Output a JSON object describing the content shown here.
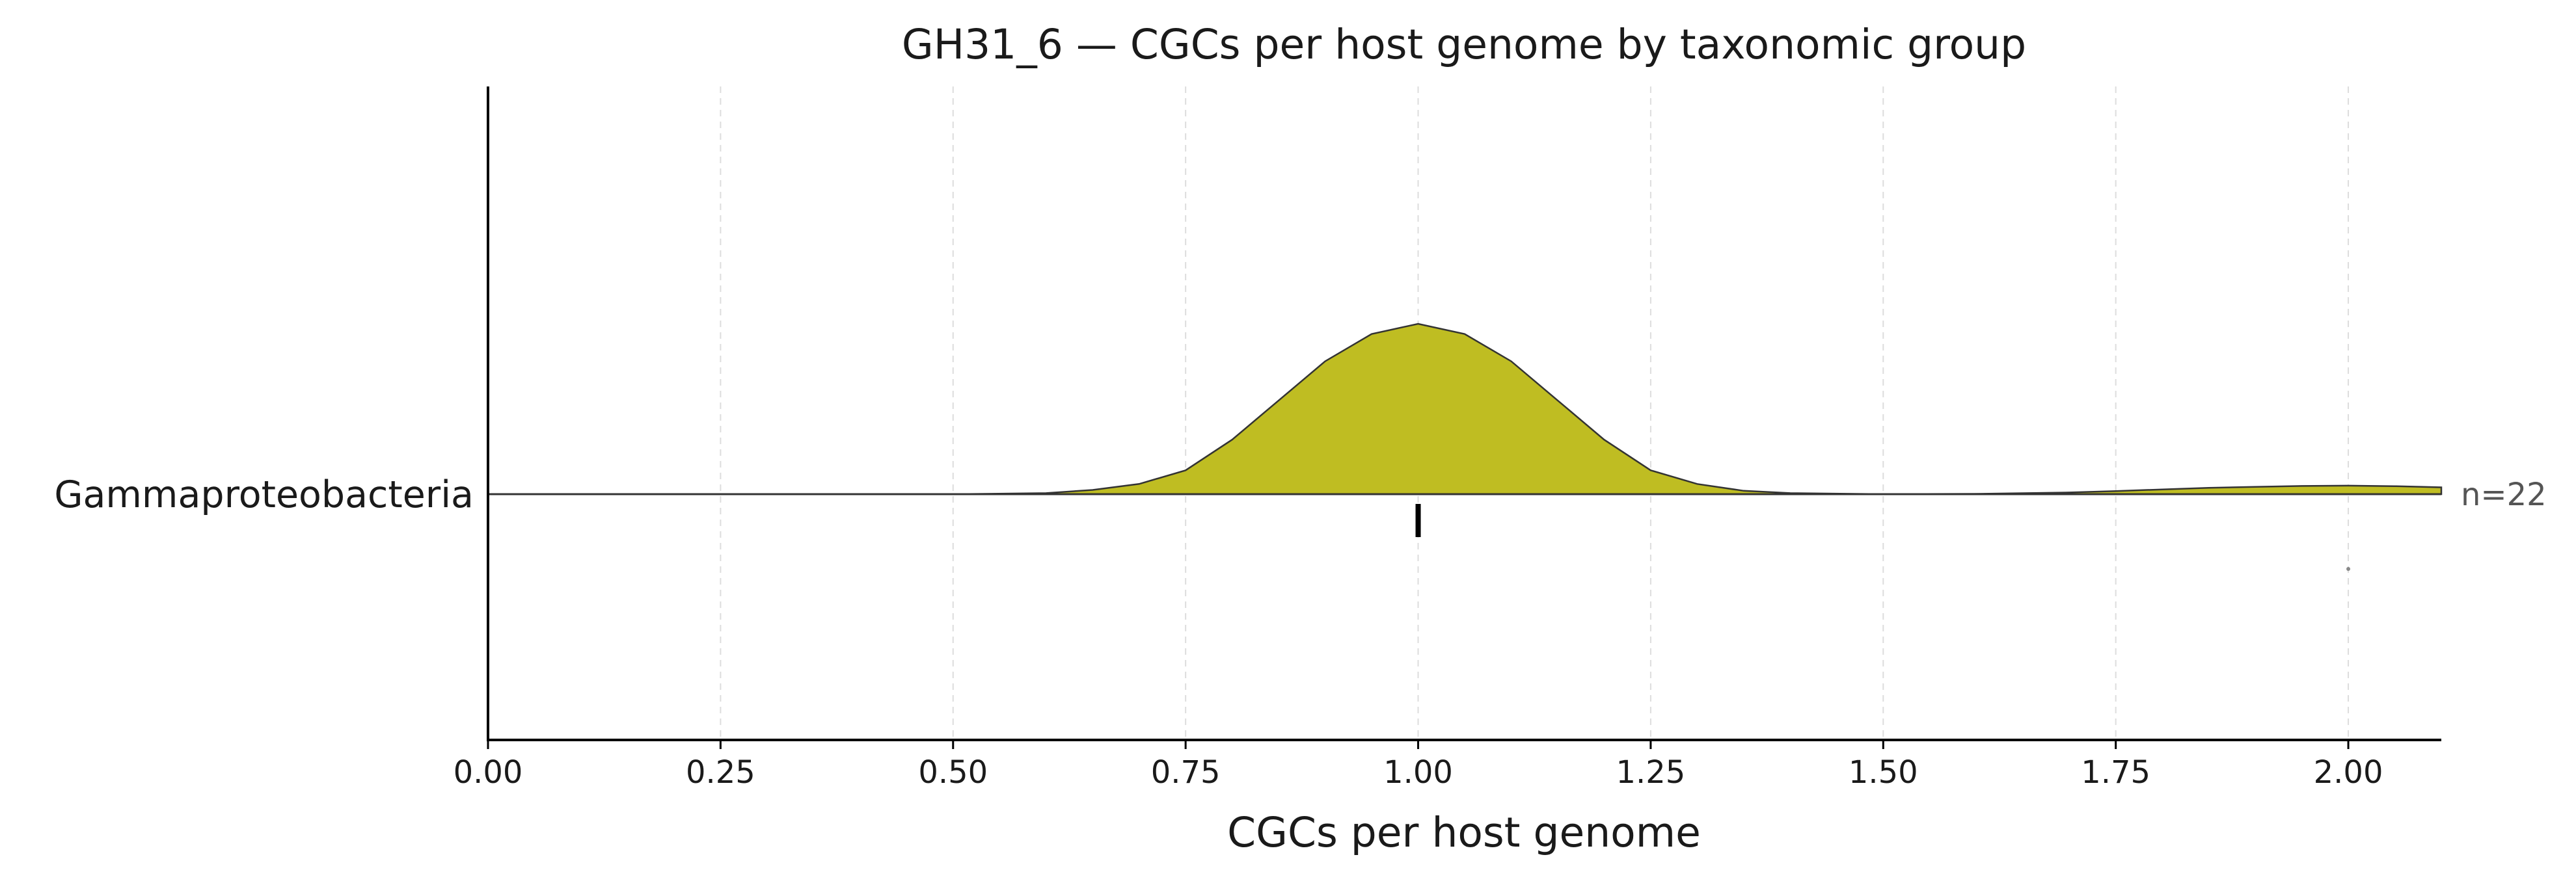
{
  "chart_data": {
    "type": "ridgeline",
    "title": "GH31_6 — CGCs per host genome by taxonomic group",
    "xlabel": "CGCs per host genome",
    "ylabel": "",
    "xlim": [
      0,
      2.1
    ],
    "x_ticks": [
      0.0,
      0.25,
      0.5,
      0.75,
      1.0,
      1.25,
      1.5,
      1.75,
      2.0
    ],
    "x_tick_labels": [
      "0.00",
      "0.25",
      "0.50",
      "0.75",
      "1.00",
      "1.25",
      "1.50",
      "1.75",
      "2.00"
    ],
    "grid": "x, dashed",
    "fill_color": "#bfbd22",
    "groups": [
      {
        "name": "Gammaproteobacteria",
        "n_label": "n=22",
        "median": 1.0,
        "outliers": [
          2.0
        ],
        "density": {
          "x": [
            0.0,
            0.5,
            0.6,
            0.65,
            0.7,
            0.75,
            0.8,
            0.85,
            0.9,
            0.95,
            1.0,
            1.05,
            1.1,
            1.15,
            1.2,
            1.25,
            1.3,
            1.35,
            1.4,
            1.5,
            1.6,
            1.7,
            1.75,
            1.8,
            1.85,
            1.9,
            1.95,
            2.0,
            2.05,
            2.1
          ],
          "y": [
            0.0,
            0.0,
            0.006,
            0.025,
            0.06,
            0.14,
            0.32,
            0.55,
            0.78,
            0.94,
            1.0,
            0.94,
            0.78,
            0.55,
            0.32,
            0.14,
            0.06,
            0.02,
            0.006,
            0.0,
            0.002,
            0.01,
            0.018,
            0.028,
            0.037,
            0.043,
            0.048,
            0.05,
            0.047,
            0.04
          ]
        }
      }
    ]
  }
}
